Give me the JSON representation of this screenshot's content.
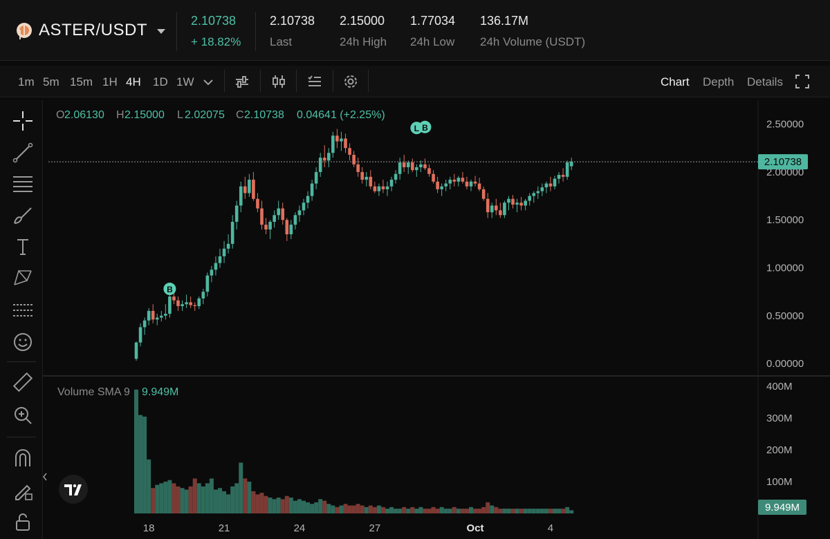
{
  "header": {
    "pair": "ASTER/USDT",
    "price": "2.10738",
    "change": "+ 18.82%",
    "stats": [
      {
        "value": "2.10738",
        "label": "Last"
      },
      {
        "value": "2.15000",
        "label": "24h High"
      },
      {
        "value": "1.77034",
        "label": "24h Low"
      },
      {
        "value": "136.17M",
        "label": "24h Volume (USDT)"
      }
    ]
  },
  "toolbar": {
    "timeframes": [
      "1m",
      "5m",
      "15m",
      "1H",
      "4H",
      "1D",
      "1W"
    ],
    "active_timeframe": "4H",
    "views": [
      "Chart",
      "Depth",
      "Details"
    ],
    "active_view": "Chart"
  },
  "ohlc": {
    "o_label": "O",
    "o": "2.06130",
    "h_label": "H",
    "h": "2.15000",
    "l_label": "L",
    "l": "2.02075",
    "c_label": "C",
    "c": "2.10738",
    "change": "0.04641 (+2.25%)"
  },
  "volume_legend": {
    "label": "Volume SMA 9",
    "value": "9.949M"
  },
  "price_badge": "2.10738",
  "volume_badge": "9.949M",
  "markers": [
    {
      "text": "B",
      "x": 8,
      "y": 0.78
    },
    {
      "text": "L",
      "x": 67,
      "y": 2.46
    },
    {
      "text": "B",
      "x": 69,
      "y": 2.47
    }
  ],
  "colors": {
    "up": "#4fb7a0",
    "down": "#e1705d",
    "vol_up": "#2e6b5c",
    "vol_down": "#7c3a34"
  },
  "chart_data": {
    "type": "candlestick",
    "price_axis": {
      "ticks": [
        "2.50000",
        "2.00000",
        "1.50000",
        "1.00000",
        "0.50000",
        "0.00000"
      ],
      "values": [
        2.5,
        2.0,
        1.5,
        1.0,
        0.5,
        0.0
      ],
      "ylim": [
        -0.1,
        2.75
      ]
    },
    "volume_axis": {
      "ticks": [
        "400M",
        "300M",
        "200M",
        "100M"
      ],
      "values": [
        400,
        300,
        200,
        100
      ],
      "ylim": [
        0,
        420
      ]
    },
    "x_ticks": [
      {
        "label": "18",
        "index": 3
      },
      {
        "label": "21",
        "index": 21
      },
      {
        "label": "24",
        "index": 39
      },
      {
        "label": "27",
        "index": 57
      },
      {
        "label": "Oct",
        "index": 81
      },
      {
        "label": "4",
        "index": 99
      }
    ],
    "candles": [
      [
        0.05,
        0.23,
        0.03,
        0.22,
        390
      ],
      [
        0.22,
        0.42,
        0.18,
        0.38,
        310
      ],
      [
        0.38,
        0.48,
        0.3,
        0.45,
        305
      ],
      [
        0.45,
        0.58,
        0.4,
        0.55,
        170
      ],
      [
        0.55,
        0.62,
        0.42,
        0.46,
        80
      ],
      [
        0.46,
        0.52,
        0.4,
        0.48,
        90
      ],
      [
        0.48,
        0.55,
        0.44,
        0.5,
        95
      ],
      [
        0.5,
        0.62,
        0.46,
        0.52,
        100
      ],
      [
        0.52,
        0.73,
        0.48,
        0.7,
        105
      ],
      [
        0.7,
        0.78,
        0.62,
        0.66,
        95
      ],
      [
        0.66,
        0.7,
        0.55,
        0.6,
        85
      ],
      [
        0.6,
        0.66,
        0.55,
        0.62,
        80
      ],
      [
        0.62,
        0.72,
        0.58,
        0.64,
        75
      ],
      [
        0.64,
        0.7,
        0.58,
        0.61,
        85
      ],
      [
        0.61,
        0.64,
        0.55,
        0.6,
        110
      ],
      [
        0.6,
        0.7,
        0.57,
        0.68,
        95
      ],
      [
        0.68,
        0.78,
        0.62,
        0.75,
        85
      ],
      [
        0.75,
        0.95,
        0.7,
        0.92,
        95
      ],
      [
        0.92,
        1.02,
        0.85,
        0.98,
        110
      ],
      [
        0.98,
        1.12,
        0.92,
        1.05,
        75
      ],
      [
        1.05,
        1.2,
        1.0,
        1.12,
        80
      ],
      [
        1.12,
        1.28,
        1.05,
        1.2,
        70
      ],
      [
        1.2,
        1.35,
        1.15,
        1.25,
        60
      ],
      [
        1.25,
        1.55,
        1.2,
        1.48,
        85
      ],
      [
        1.48,
        1.7,
        1.4,
        1.65,
        95
      ],
      [
        1.65,
        1.9,
        1.58,
        1.85,
        160
      ],
      [
        1.85,
        1.95,
        1.72,
        1.78,
        110
      ],
      [
        1.78,
        1.98,
        1.74,
        1.92,
        100
      ],
      [
        1.92,
        2.0,
        1.7,
        1.72,
        70
      ],
      [
        1.72,
        1.78,
        1.58,
        1.62,
        60
      ],
      [
        1.62,
        1.7,
        1.4,
        1.45,
        65
      ],
      [
        1.45,
        1.52,
        1.35,
        1.4,
        55
      ],
      [
        1.4,
        1.5,
        1.3,
        1.48,
        50
      ],
      [
        1.48,
        1.6,
        1.42,
        1.55,
        45
      ],
      [
        1.55,
        1.7,
        1.5,
        1.62,
        50
      ],
      [
        1.62,
        1.68,
        1.45,
        1.5,
        45
      ],
      [
        1.5,
        1.52,
        1.28,
        1.35,
        55
      ],
      [
        1.35,
        1.5,
        1.3,
        1.45,
        50
      ],
      [
        1.45,
        1.58,
        1.4,
        1.55,
        40
      ],
      [
        1.55,
        1.65,
        1.48,
        1.6,
        45
      ],
      [
        1.6,
        1.72,
        1.55,
        1.68,
        40
      ],
      [
        1.68,
        1.8,
        1.62,
        1.75,
        35
      ],
      [
        1.75,
        1.92,
        1.7,
        1.88,
        30
      ],
      [
        1.88,
        2.05,
        1.82,
        2.0,
        35
      ],
      [
        2.0,
        2.2,
        1.95,
        2.15,
        45
      ],
      [
        2.15,
        2.28,
        2.05,
        2.12,
        40
      ],
      [
        2.12,
        2.25,
        2.05,
        2.2,
        30
      ],
      [
        2.2,
        2.42,
        2.15,
        2.38,
        25
      ],
      [
        2.38,
        2.45,
        2.25,
        2.32,
        20
      ],
      [
        2.32,
        2.42,
        2.22,
        2.35,
        25
      ],
      [
        2.35,
        2.4,
        2.2,
        2.25,
        30
      ],
      [
        2.25,
        2.3,
        2.12,
        2.18,
        25
      ],
      [
        2.18,
        2.22,
        2.05,
        2.08,
        25
      ],
      [
        2.08,
        2.15,
        1.95,
        2.0,
        30
      ],
      [
        2.0,
        2.05,
        1.88,
        1.92,
        25
      ],
      [
        1.92,
        2.0,
        1.85,
        1.95,
        20
      ],
      [
        1.95,
        2.02,
        1.82,
        1.85,
        25
      ],
      [
        1.85,
        1.9,
        1.78,
        1.8,
        20
      ],
      [
        1.8,
        1.88,
        1.75,
        1.85,
        25
      ],
      [
        1.85,
        1.92,
        1.78,
        1.82,
        20
      ],
      [
        1.82,
        1.9,
        1.75,
        1.85,
        15
      ],
      [
        1.85,
        1.95,
        1.8,
        1.92,
        20
      ],
      [
        1.92,
        2.02,
        1.88,
        1.98,
        15
      ],
      [
        1.98,
        2.15,
        1.92,
        2.1,
        15
      ],
      [
        2.1,
        2.18,
        2.0,
        2.05,
        20
      ],
      [
        2.05,
        2.12,
        1.98,
        2.1,
        15
      ],
      [
        2.1,
        2.14,
        2.0,
        2.02,
        20
      ],
      [
        2.02,
        2.08,
        1.95,
        2.05,
        15
      ],
      [
        2.05,
        2.12,
        2.0,
        2.08,
        20
      ],
      [
        2.08,
        2.14,
        2.02,
        2.04,
        15
      ],
      [
        2.04,
        2.08,
        1.95,
        1.98,
        15
      ],
      [
        1.98,
        2.02,
        1.88,
        1.9,
        20
      ],
      [
        1.9,
        1.95,
        1.78,
        1.82,
        15
      ],
      [
        1.82,
        1.88,
        1.75,
        1.85,
        20
      ],
      [
        1.85,
        1.92,
        1.8,
        1.88,
        15
      ],
      [
        1.88,
        1.95,
        1.82,
        1.92,
        15
      ],
      [
        1.92,
        1.98,
        1.85,
        1.9,
        20
      ],
      [
        1.9,
        1.96,
        1.85,
        1.94,
        15
      ],
      [
        1.94,
        2.0,
        1.88,
        1.9,
        15
      ],
      [
        1.9,
        1.95,
        1.82,
        1.85,
        15
      ],
      [
        1.85,
        1.92,
        1.8,
        1.9,
        20
      ],
      [
        1.9,
        1.96,
        1.85,
        1.88,
        15
      ],
      [
        1.88,
        1.94,
        1.8,
        1.82,
        15
      ],
      [
        1.82,
        1.85,
        1.7,
        1.72,
        20
      ],
      [
        1.72,
        1.78,
        1.52,
        1.58,
        35
      ],
      [
        1.58,
        1.68,
        1.52,
        1.65,
        25
      ],
      [
        1.65,
        1.72,
        1.55,
        1.6,
        20
      ],
      [
        1.6,
        1.68,
        1.52,
        1.55,
        15
      ],
      [
        1.55,
        1.7,
        1.52,
        1.68,
        15
      ],
      [
        1.68,
        1.75,
        1.6,
        1.72,
        15
      ],
      [
        1.72,
        1.76,
        1.62,
        1.66,
        15
      ],
      [
        1.66,
        1.72,
        1.58,
        1.68,
        15
      ],
      [
        1.68,
        1.74,
        1.6,
        1.65,
        15
      ],
      [
        1.65,
        1.72,
        1.6,
        1.7,
        15
      ],
      [
        1.7,
        1.78,
        1.65,
        1.75,
        15
      ],
      [
        1.75,
        1.8,
        1.68,
        1.78,
        15
      ],
      [
        1.78,
        1.85,
        1.72,
        1.8,
        15
      ],
      [
        1.8,
        1.88,
        1.75,
        1.84,
        15
      ],
      [
        1.84,
        1.9,
        1.78,
        1.88,
        15
      ],
      [
        1.88,
        1.95,
        1.8,
        1.85,
        15
      ],
      [
        1.85,
        1.96,
        1.82,
        1.93,
        15
      ],
      [
        1.93,
        2.0,
        1.88,
        1.97,
        15
      ],
      [
        1.97,
        2.04,
        1.9,
        1.95,
        15
      ],
      [
        1.95,
        2.12,
        1.92,
        2.1,
        20
      ],
      [
        2.06,
        2.15,
        2.02,
        2.11,
        10
      ]
    ]
  }
}
